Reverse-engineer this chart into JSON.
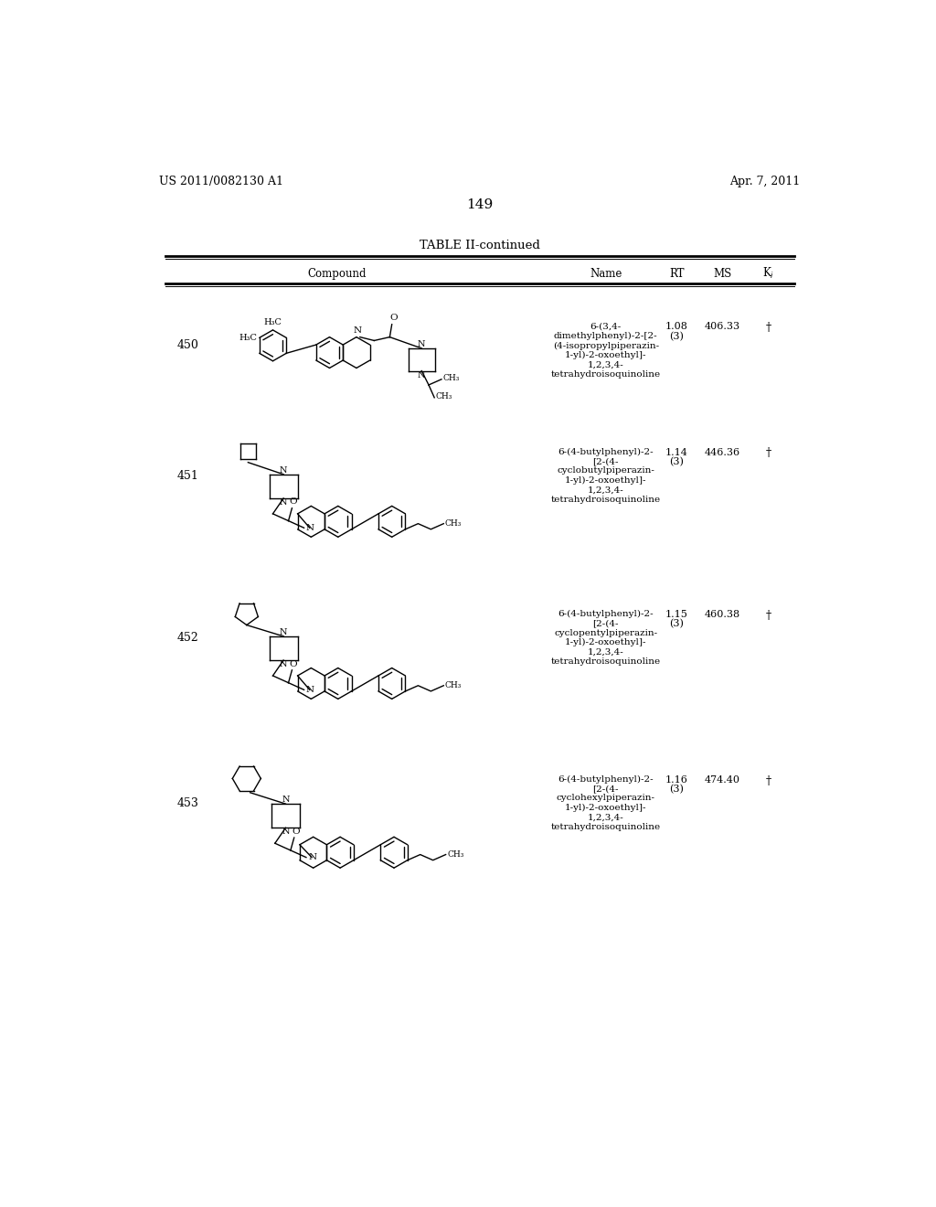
{
  "page_number": "149",
  "patent_number": "US 2011/0082130 A1",
  "patent_date": "Apr. 7, 2011",
  "table_title": "TABLE II-continued",
  "background_color": "#ffffff",
  "text_color": "#000000",
  "rows": [
    {
      "num": "450",
      "name": "6-(3,4-\ndimethylphenyl)-2-[2-\n(4-isopropylpiperazin-\n1-yl)-2-oxoethyl]-\n1,2,3,4-\ntetrahydroisoquinoline",
      "rt": "1.08",
      "rt2": "(3)",
      "ms": "406.33",
      "ki": "†"
    },
    {
      "num": "451",
      "name": "6-(4-butylphenyl)-2-\n[2-(4-\ncyclobutylpiperazin-\n1-yl)-2-oxoethyl]-\n1,2,3,4-\ntetrahydroisoquinoline",
      "rt": "1.14",
      "rt2": "(3)",
      "ms": "446.36",
      "ki": "†"
    },
    {
      "num": "452",
      "name": "6-(4-butylphenyl)-2-\n[2-(4-\ncyclopentylpiperazin-\n1-yl)-2-oxoethyl]-\n1,2,3,4-\ntetrahydroisoquinoline",
      "rt": "1.15",
      "rt2": "(3)",
      "ms": "460.38",
      "ki": "†"
    },
    {
      "num": "453",
      "name": "6-(4-butylphenyl)-2-\n[2-(4-\ncyclohexylpiperazin-\n1-yl)-2-oxoethyl]-\n1,2,3,4-\ntetrahydroisoquinoline",
      "rt": "1.16",
      "rt2": "(3)",
      "ms": "474.40",
      "ki": "†"
    }
  ]
}
